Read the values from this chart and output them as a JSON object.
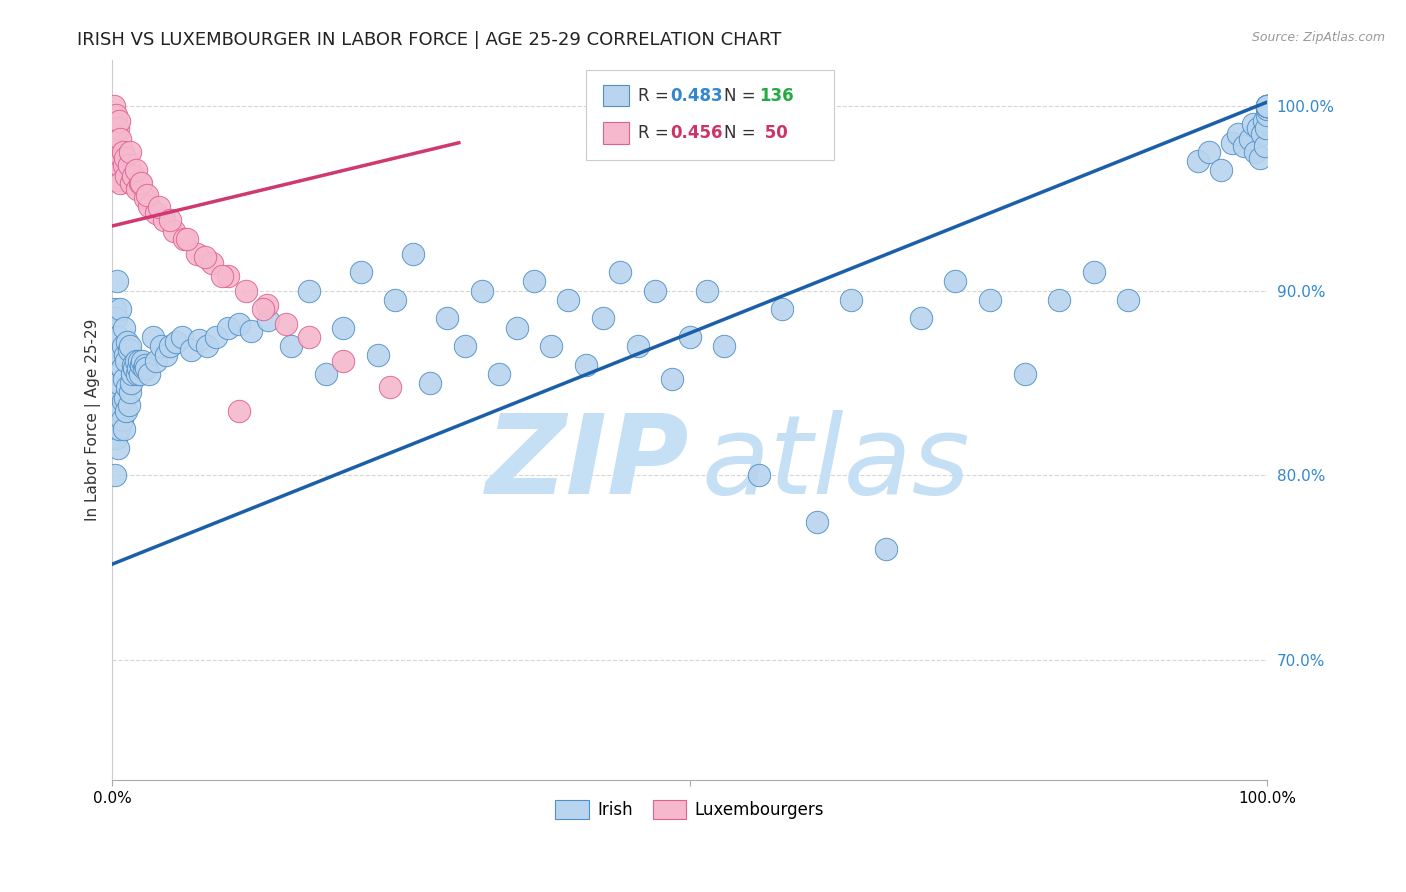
{
  "title": "IRISH VS LUXEMBOURGER IN LABOR FORCE | AGE 25-29 CORRELATION CHART",
  "source_text": "Source: ZipAtlas.com",
  "ylabel": "In Labor Force | Age 25-29",
  "xlim": [
    0.0,
    1.0
  ],
  "ylim": [
    0.635,
    1.025
  ],
  "irish_color": "#b8d4ee",
  "irish_edge_color": "#5090c8",
  "irish_line_color": "#1a5fa8",
  "lux_color": "#f5b8cc",
  "lux_edge_color": "#e06090",
  "lux_line_color": "#d03870",
  "background_color": "#ffffff",
  "grid_color": "#cccccc",
  "ytick_color": "#3388cc",
  "r_color_irish": "#3388cc",
  "n_color_irish": "#22aa44",
  "r_color_lux": "#cc3366",
  "n_color_lux": "#cc3366",
  "watermark_color": "#c5dff5",
  "source_color": "#999999",
  "title_color": "#222222"
}
